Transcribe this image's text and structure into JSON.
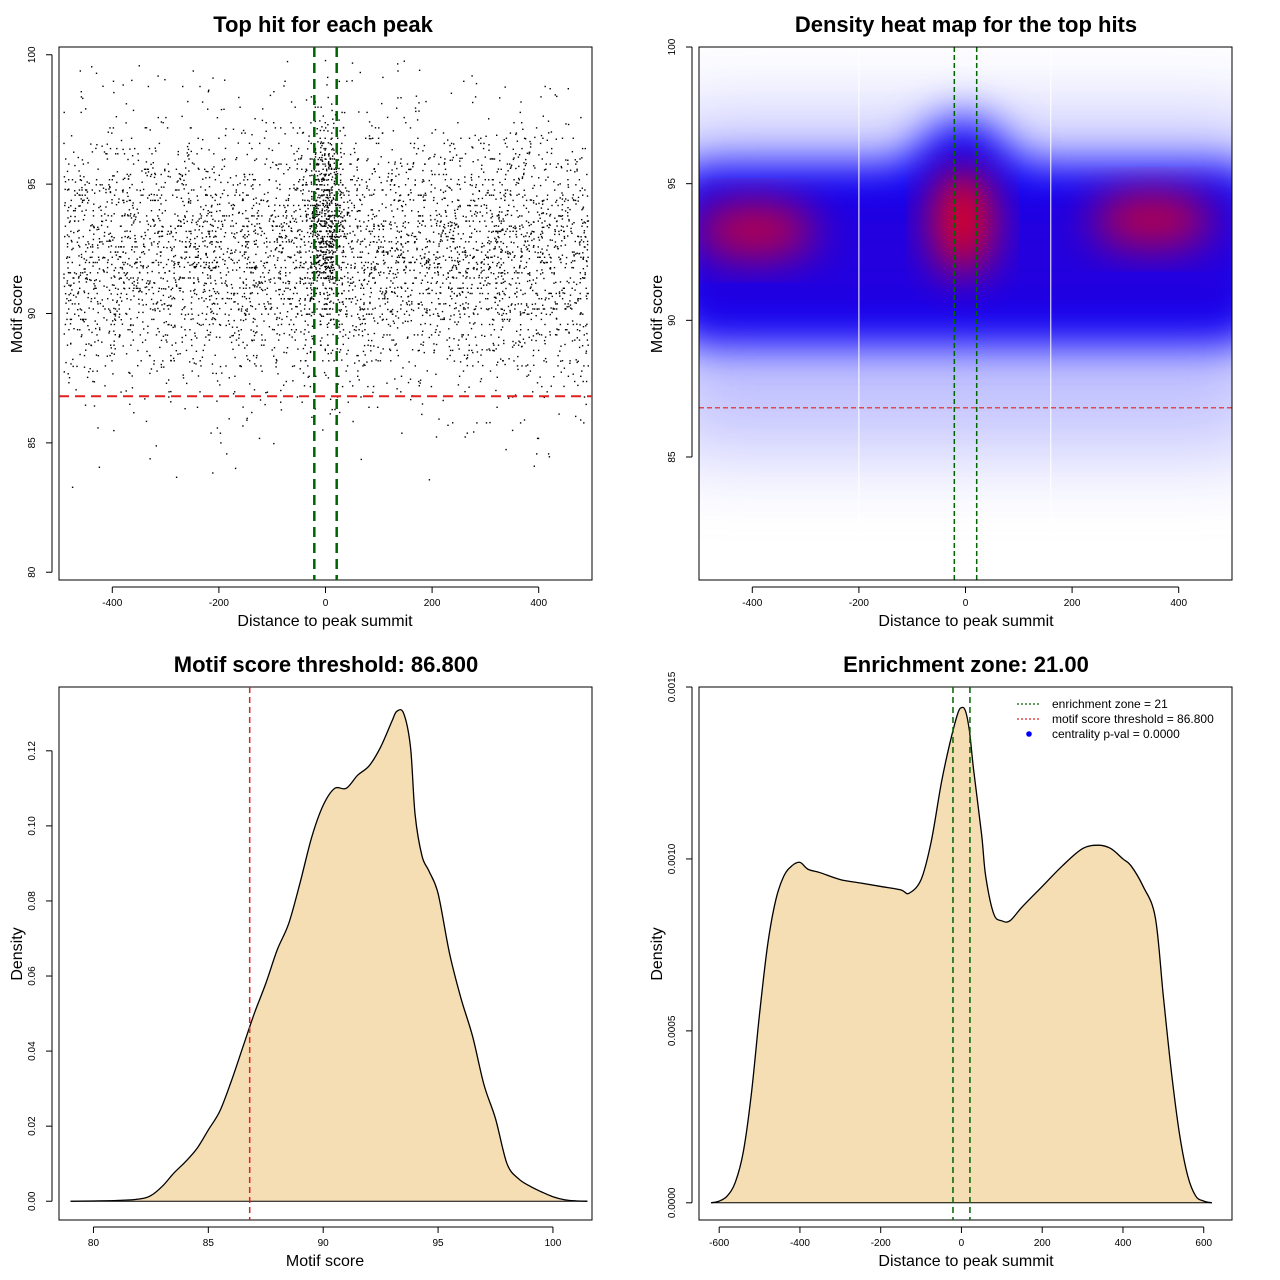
{
  "chart_data": [
    {
      "type": "scatter",
      "title": "Top hit for each peak",
      "xlabel": "Distance to peak summit",
      "ylabel": "Motif score",
      "xlim": [
        -500,
        500
      ],
      "ylim": [
        79.7,
        100.3
      ],
      "xticks": [
        -400,
        -200,
        0,
        200,
        400
      ],
      "yticks": [
        80,
        85,
        90,
        95,
        100
      ],
      "threshold": 86.8,
      "enrichment_zone": [
        -21,
        21
      ],
      "colors": {
        "points": "#000000",
        "threshold": "#e02020",
        "zone": "#006400"
      }
    },
    {
      "type": "heatmap",
      "title": "Density heat map for the top hits",
      "xlabel": "Distance to peak summit",
      "ylabel": "Motif score",
      "xlim": [
        -500,
        500
      ],
      "ylim": [
        80.5,
        100
      ],
      "xticks": [
        -400,
        -200,
        0,
        200,
        400
      ],
      "yticks": [
        85,
        90,
        95,
        100
      ],
      "threshold": 86.8,
      "enrichment_zone": [
        -21,
        21
      ],
      "hotspots": [
        {
          "x": -395,
          "y": 93.3,
          "level": "high"
        },
        {
          "x": -5,
          "y": 93.7,
          "level": "peak"
        },
        {
          "x": 350,
          "y": 93.7,
          "level": "high"
        }
      ],
      "colors": {
        "low": "#ffffff",
        "mid": "#0000ff",
        "high": "#ff0000"
      }
    },
    {
      "type": "area",
      "title": "Motif score threshold: 86.800",
      "xlabel": "Motif score",
      "ylabel": "Density",
      "xlim": [
        78.5,
        101.7
      ],
      "ylim": [
        -0.005,
        0.137
      ],
      "xticks": [
        80,
        85,
        90,
        95,
        100
      ],
      "yticks": [
        0.0,
        0.02,
        0.04,
        0.06,
        0.08,
        0.1,
        0.12
      ],
      "ytick_labels": [
        "0.00",
        "0.02",
        "0.04",
        "0.06",
        "0.08",
        "0.10",
        "0.12"
      ],
      "x": [
        79,
        81,
        82,
        82.5,
        83,
        83.5,
        84,
        84.5,
        85,
        85.5,
        86,
        86.5,
        87,
        87.5,
        88,
        88.5,
        89,
        89.5,
        90,
        90.5,
        91,
        91.5,
        92,
        92.5,
        93,
        93.2,
        93.5,
        93.8,
        94,
        94.3,
        94.6,
        95,
        95.5,
        96,
        96.5,
        97,
        97.5,
        98,
        98.5,
        99,
        99.5,
        100,
        100.5,
        101,
        101.5
      ],
      "y": [
        0,
        0.0002,
        0.0006,
        0.0015,
        0.004,
        0.0075,
        0.0105,
        0.014,
        0.019,
        0.024,
        0.032,
        0.041,
        0.05,
        0.058,
        0.067,
        0.074,
        0.085,
        0.097,
        0.1055,
        0.11,
        0.11,
        0.1135,
        0.116,
        0.121,
        0.128,
        0.1305,
        0.13,
        0.121,
        0.103,
        0.092,
        0.088,
        0.082,
        0.066,
        0.054,
        0.044,
        0.031,
        0.022,
        0.01,
        0.006,
        0.004,
        0.0025,
        0.0012,
        0.0004,
        0.0001,
        0
      ],
      "threshold": 86.8,
      "colors": {
        "fill": "#f5deb3",
        "line": "#000000",
        "threshold": "#e02020"
      }
    },
    {
      "type": "area",
      "title": "Enrichment zone: 21.00",
      "xlabel": "Distance to peak summit",
      "ylabel": "Density",
      "xlim": [
        -650,
        670
      ],
      "ylim": [
        -5e-05,
        0.0015
      ],
      "xticks": [
        -600,
        -400,
        -200,
        0,
        200,
        400,
        600
      ],
      "yticks": [
        0,
        0.0005,
        0.001,
        0.0015
      ],
      "ytick_labels": [
        "0.0000",
        "0.0005",
        "0.0010",
        "0.0015"
      ],
      "x": [
        -620,
        -600,
        -580,
        -560,
        -540,
        -520,
        -500,
        -480,
        -460,
        -440,
        -420,
        -400,
        -380,
        -350,
        -300,
        -250,
        -200,
        -150,
        -130,
        -100,
        -75,
        -50,
        -30,
        -10,
        0,
        10,
        20,
        30,
        50,
        60,
        80,
        100,
        120,
        150,
        200,
        250,
        300,
        340,
        370,
        400,
        420,
        450,
        480,
        500,
        520,
        540,
        560,
        580,
        600,
        620
      ],
      "y": [
        0,
        5e-06,
        2e-05,
        6e-05,
        0.00015,
        0.00032,
        0.00055,
        0.00075,
        0.00088,
        0.00095,
        0.00098,
        0.00099,
        0.00097,
        0.00096,
        0.00094,
        0.00093,
        0.00092,
        0.00091,
        0.0009,
        0.00094,
        0.00105,
        0.00122,
        0.00133,
        0.00142,
        0.00144,
        0.00143,
        0.00137,
        0.00126,
        0.00107,
        0.00095,
        0.00084,
        0.00082,
        0.00082,
        0.00086,
        0.00092,
        0.00098,
        0.00103,
        0.00104,
        0.00103,
        0.001,
        0.00098,
        0.00092,
        0.00083,
        0.0006,
        0.00038,
        0.0002,
        8e-05,
        2e-05,
        5e-06,
        0
      ],
      "enrichment_zone": [
        -21,
        21
      ],
      "legend": [
        {
          "label": "enrichment zone = 21",
          "style": "dotted-line",
          "color": "#006400"
        },
        {
          "label": "motif score threshold = 86.800",
          "style": "dotted-line",
          "color": "#e02020"
        },
        {
          "label": "centrality p-val = 0.0000",
          "style": "point",
          "color": "#0000ff"
        }
      ],
      "legend_position": "top-right",
      "colors": {
        "fill": "#f5deb3",
        "line": "#000000",
        "zone": "#006400"
      }
    }
  ]
}
